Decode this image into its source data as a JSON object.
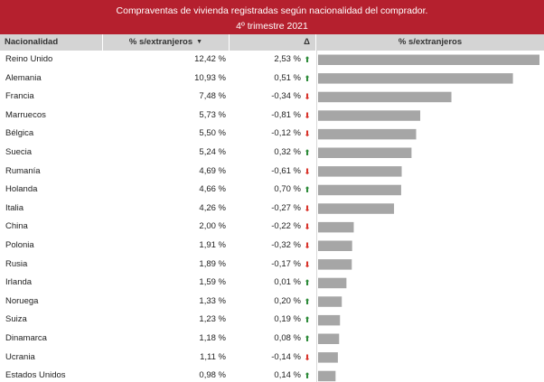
{
  "title": "Compraventas de vivienda registradas según nacionalidad del comprador.",
  "subtitle": "4º trimestre 2021",
  "headers": {
    "nacionalidad": "Nacionalidad",
    "pct": "% s/extranjeros",
    "sort_icon": "▼",
    "delta": "Δ",
    "bar": "% s/extranjeros"
  },
  "colors": {
    "title_bg": "#b5202e",
    "header_bg": "#d4d4d4",
    "bar": "#a6a6a6",
    "up": "#2e8b3a",
    "down": "#d9342b"
  },
  "rows": [
    {
      "name": "Reino Unido",
      "pct": "12,42 %",
      "delta": "2,53 %",
      "dir": "up"
    },
    {
      "name": "Alemania",
      "pct": "10,93 %",
      "delta": "0,51 %",
      "dir": "up"
    },
    {
      "name": "Francia",
      "pct": "7,48 %",
      "delta": "-0,34 %",
      "dir": "down"
    },
    {
      "name": "Marruecos",
      "pct": "5,73 %",
      "delta": "-0,81 %",
      "dir": "down"
    },
    {
      "name": "Bélgica",
      "pct": "5,50 %",
      "delta": "-0,12 %",
      "dir": "down"
    },
    {
      "name": "Suecia",
      "pct": "5,24 %",
      "delta": "0,32 %",
      "dir": "up"
    },
    {
      "name": "Rumanía",
      "pct": "4,69 %",
      "delta": "-0,61 %",
      "dir": "down"
    },
    {
      "name": "Holanda",
      "pct": "4,66 %",
      "delta": "0,70 %",
      "dir": "up"
    },
    {
      "name": "Italia",
      "pct": "4,26 %",
      "delta": "-0,27 %",
      "dir": "down"
    },
    {
      "name": "China",
      "pct": "2,00 %",
      "delta": "-0,22 %",
      "dir": "down"
    },
    {
      "name": "Polonia",
      "pct": "1,91 %",
      "delta": "-0,32 %",
      "dir": "down"
    },
    {
      "name": "Rusia",
      "pct": "1,89 %",
      "delta": "-0,17 %",
      "dir": "down"
    },
    {
      "name": "Irlanda",
      "pct": "1,59 %",
      "delta": "0,01 %",
      "dir": "up"
    },
    {
      "name": "Noruega",
      "pct": "1,33 %",
      "delta": "0,20 %",
      "dir": "up"
    },
    {
      "name": "Suiza",
      "pct": "1,23 %",
      "delta": "0,19 %",
      "dir": "up"
    },
    {
      "name": "Dinamarca",
      "pct": "1,18 %",
      "delta": "0,08 %",
      "dir": "up"
    },
    {
      "name": "Ucrania",
      "pct": "1,11 %",
      "delta": "-0,14 %",
      "dir": "down"
    },
    {
      "name": "Estados Unidos",
      "pct": "0,98 %",
      "delta": "0,14 %",
      "dir": "up"
    }
  ],
  "chart_data": {
    "type": "bar",
    "orientation": "horizontal",
    "title": "Compraventas de vivienda registradas según nacionalidad del comprador.",
    "subtitle": "4º trimestre 2021",
    "categories": [
      "Reino Unido",
      "Alemania",
      "Francia",
      "Marruecos",
      "Bélgica",
      "Suecia",
      "Rumanía",
      "Holanda",
      "Italia",
      "China",
      "Polonia",
      "Rusia",
      "Irlanda",
      "Noruega",
      "Suiza",
      "Dinamarca",
      "Ucrania",
      "Estados Unidos"
    ],
    "series": [
      {
        "name": "% s/extranjeros",
        "values": [
          12.42,
          10.93,
          7.48,
          5.73,
          5.5,
          5.24,
          4.69,
          4.66,
          4.26,
          2.0,
          1.91,
          1.89,
          1.59,
          1.33,
          1.23,
          1.18,
          1.11,
          0.98
        ]
      }
    ],
    "delta": [
      2.53,
      0.51,
      -0.34,
      -0.81,
      -0.12,
      0.32,
      -0.61,
      0.7,
      -0.27,
      -0.22,
      -0.32,
      -0.17,
      0.01,
      0.2,
      0.19,
      0.08,
      -0.14,
      0.14
    ],
    "xlim": [
      0,
      12.42
    ],
    "grid": false,
    "legend": "none"
  }
}
